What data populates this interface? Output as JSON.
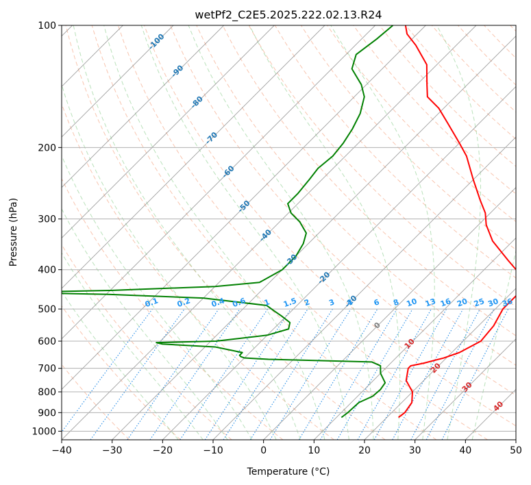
{
  "chart_data": {
    "type": "line",
    "subtype": "skew-t log-p diagram",
    "title": "wetPf2_C2E5.2025.222.02.13.R24",
    "xlabel": "Temperature (°C)",
    "ylabel": "Pressure (hPa)",
    "xlim": [
      -40,
      50
    ],
    "ylim": [
      1050,
      100
    ],
    "y_scale": "log",
    "x_ticks": [
      -40,
      -30,
      -20,
      -10,
      0,
      10,
      20,
      30,
      40,
      50
    ],
    "y_ticks": [
      100,
      200,
      300,
      400,
      500,
      600,
      700,
      800,
      900,
      1000
    ],
    "grid": true,
    "colors": {
      "temperature": "#ff0000",
      "dewpoint": "#008000",
      "isotherm": "#808080",
      "dry_adiabat": "#f4a582",
      "moist_adiabat": "#74c476",
      "mixing_ratio": "#1e88e5",
      "mixing_label": "#2196f3",
      "isotherm_label_cold": "#1f77b4",
      "isotherm_label_warm": "#d62728",
      "isotherm_label_zero": "#7f7f7f"
    },
    "isotherm_labels": [
      {
        "t": -100,
        "p": 110
      },
      {
        "t": -90,
        "p": 130
      },
      {
        "t": -80,
        "p": 155
      },
      {
        "t": -70,
        "p": 190
      },
      {
        "t": -60,
        "p": 230
      },
      {
        "t": -50,
        "p": 280
      },
      {
        "t": -40,
        "p": 330
      },
      {
        "t": -30,
        "p": 380
      },
      {
        "t": -20,
        "p": 420
      },
      {
        "t": -10,
        "p": 480
      },
      {
        "t": 0,
        "p": 550
      },
      {
        "t": 10,
        "p": 610
      },
      {
        "t": 20,
        "p": 700
      },
      {
        "t": 30,
        "p": 780
      },
      {
        "t": 40,
        "p": 870
      }
    ],
    "mixing_ratio_labels": [
      "0.1",
      "0.2",
      "0.4",
      "0.6",
      "1",
      "1.5",
      "2",
      "3",
      "4",
      "6",
      "8",
      "10",
      "13",
      "16",
      "20",
      "25",
      "30",
      "36"
    ],
    "mixing_ratio_values": [
      0.1,
      0.2,
      0.4,
      0.6,
      1,
      1.5,
      2,
      3,
      4,
      6,
      8,
      10,
      13,
      16,
      20,
      25,
      30,
      36
    ],
    "series": [
      {
        "role": "temperature",
        "points": [
          {
            "p": 925,
            "t": 22.3
          },
          {
            "p": 900,
            "t": 22.6
          },
          {
            "p": 850,
            "t": 22.0
          },
          {
            "p": 800,
            "t": 20.0
          },
          {
            "p": 750,
            "t": 16.5
          },
          {
            "p": 700,
            "t": 14.5
          },
          {
            "p": 690,
            "t": 14.5
          },
          {
            "p": 680,
            "t": 16.5
          },
          {
            "p": 660,
            "t": 19.5
          },
          {
            "p": 640,
            "t": 21.5
          },
          {
            "p": 600,
            "t": 23.5
          },
          {
            "p": 550,
            "t": 23.0
          },
          {
            "p": 500,
            "t": 21.5
          },
          {
            "p": 450,
            "t": 21.5
          },
          {
            "p": 420,
            "t": 19.5
          },
          {
            "p": 380,
            "t": 13.0
          },
          {
            "p": 340,
            "t": 6.0
          },
          {
            "p": 310,
            "t": 1.5
          },
          {
            "p": 290,
            "t": -1.0
          },
          {
            "p": 270,
            "t": -4.5
          },
          {
            "p": 240,
            "t": -10.0
          },
          {
            "p": 210,
            "t": -16.0
          },
          {
            "p": 195,
            "t": -20.0
          },
          {
            "p": 175,
            "t": -26.0
          },
          {
            "p": 160,
            "t": -31.0
          },
          {
            "p": 150,
            "t": -35.5
          },
          {
            "p": 140,
            "t": -38.0
          },
          {
            "p": 125,
            "t": -42.0
          },
          {
            "p": 112,
            "t": -48.0
          },
          {
            "p": 105,
            "t": -52.0
          },
          {
            "p": 100,
            "t": -54.0
          }
        ]
      },
      {
        "role": "dewpoint",
        "points": [
          {
            "p": 925,
            "t": 11.0
          },
          {
            "p": 900,
            "t": 11.3
          },
          {
            "p": 850,
            "t": 11.5
          },
          {
            "p": 820,
            "t": 13.0
          },
          {
            "p": 790,
            "t": 13.2
          },
          {
            "p": 760,
            "t": 12.8
          },
          {
            "p": 720,
            "t": 10.0
          },
          {
            "p": 690,
            "t": 8.5
          },
          {
            "p": 675,
            "t": 6.0
          },
          {
            "p": 665,
            "t": -15.0
          },
          {
            "p": 660,
            "t": -20.0
          },
          {
            "p": 655,
            "t": -21.0
          },
          {
            "p": 650,
            "t": -21.5
          },
          {
            "p": 640,
            "t": -21.5
          },
          {
            "p": 620,
            "t": -28.0
          },
          {
            "p": 610,
            "t": -39.0
          },
          {
            "p": 605,
            "t": -40.5
          },
          {
            "p": 600,
            "t": -29.0
          },
          {
            "p": 580,
            "t": -20.0
          },
          {
            "p": 560,
            "t": -17.0
          },
          {
            "p": 540,
            "t": -18.0
          },
          {
            "p": 520,
            "t": -21.0
          },
          {
            "p": 505,
            "t": -23.5
          },
          {
            "p": 490,
            "t": -26.0
          },
          {
            "p": 470,
            "t": -40.0
          },
          {
            "p": 460,
            "t": -60.0
          },
          {
            "p": 455,
            "t": -80.0
          },
          {
            "p": 450,
            "t": -60.0
          },
          {
            "p": 440,
            "t": -40.0
          },
          {
            "p": 430,
            "t": -32.0
          },
          {
            "p": 400,
            "t": -30.0
          },
          {
            "p": 370,
            "t": -30.0
          },
          {
            "p": 345,
            "t": -31.0
          },
          {
            "p": 325,
            "t": -32.5
          },
          {
            "p": 305,
            "t": -36.0
          },
          {
            "p": 290,
            "t": -39.5
          },
          {
            "p": 275,
            "t": -42.0
          },
          {
            "p": 260,
            "t": -42.0
          },
          {
            "p": 240,
            "t": -42.5
          },
          {
            "p": 225,
            "t": -43.0
          },
          {
            "p": 210,
            "t": -42.5
          },
          {
            "p": 195,
            "t": -43.0
          },
          {
            "p": 180,
            "t": -44.0
          },
          {
            "p": 165,
            "t": -45.5
          },
          {
            "p": 150,
            "t": -48.0
          },
          {
            "p": 140,
            "t": -51.0
          },
          {
            "p": 128,
            "t": -56.0
          },
          {
            "p": 118,
            "t": -58.0
          },
          {
            "p": 108,
            "t": -57.0
          },
          {
            "p": 100,
            "t": -56.5
          }
        ]
      }
    ]
  }
}
